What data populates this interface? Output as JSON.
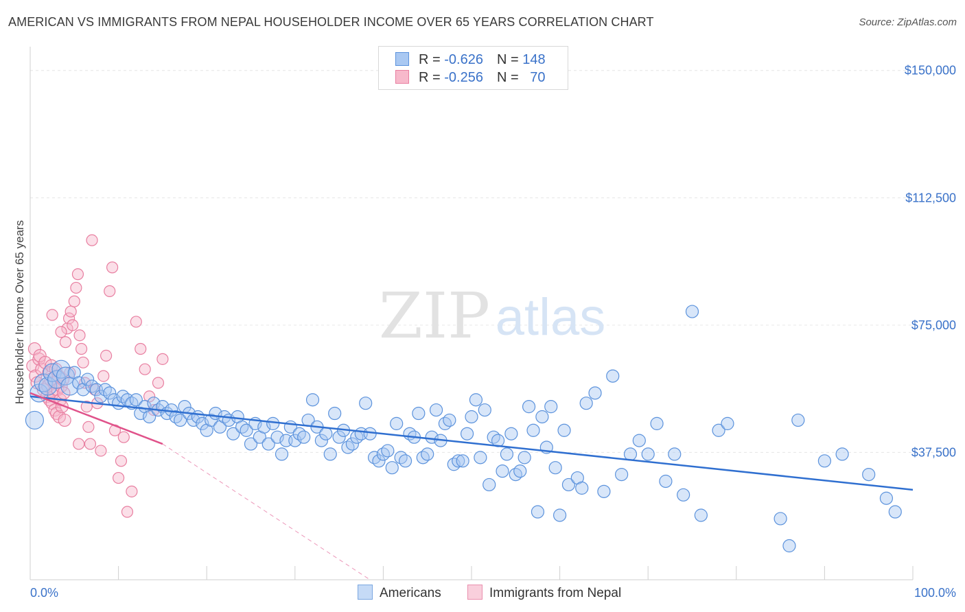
{
  "title": "AMERICAN VS IMMIGRANTS FROM NEPAL HOUSEHOLDER INCOME OVER 65 YEARS CORRELATION CHART",
  "source": "Source: ZipAtlas.com",
  "watermark": {
    "zip": "ZIP",
    "atlas": "atlas"
  },
  "legend": {
    "rows": [
      {
        "r_label": "R = ",
        "r_value": "-0.626",
        "n_label": "N = ",
        "n_value": "148"
      },
      {
        "r_label": "R = ",
        "r_value": "-0.256",
        "n_label": "N = ",
        "n_value": "70"
      }
    ]
  },
  "colors": {
    "americans_fill": "#a9c8f2",
    "americans_stroke": "#5b92dc",
    "americans_line": "#2f6fd0",
    "nepal_fill": "#f7b9cb",
    "nepal_stroke": "#e87ea0",
    "nepal_line": "#e0528a",
    "tick_label": "#3a72c9",
    "grid": "#e6e6e6"
  },
  "chart_data": {
    "type": "scatter",
    "xlabel": "",
    "ylabel": "Householder Income Over 65 years",
    "xlim": [
      0,
      100
    ],
    "ylim": [
      0,
      155000
    ],
    "x_ticks": {
      "left": "0.0%",
      "right": "100.0%"
    },
    "y_ticks": [
      {
        "value": 37500,
        "label": "$37,500"
      },
      {
        "value": 75000,
        "label": "$75,000"
      },
      {
        "value": 112500,
        "label": "$112,500"
      },
      {
        "value": 150000,
        "label": "$150,000"
      }
    ],
    "grid": true,
    "legend_position": "bottom",
    "series": [
      {
        "name": "Americans",
        "trend": {
          "x": [
            0,
            100
          ],
          "y": [
            54000,
            26500
          ]
        },
        "points": [
          [
            0.5,
            47000
          ],
          [
            1,
            55000
          ],
          [
            1.5,
            58000
          ],
          [
            2,
            57000
          ],
          [
            2.5,
            61000
          ],
          [
            3,
            59000
          ],
          [
            3.5,
            62000
          ],
          [
            4,
            60000
          ],
          [
            4.5,
            57000
          ],
          [
            5,
            61000
          ],
          [
            5.5,
            58000
          ],
          [
            6,
            56000
          ],
          [
            6.5,
            59000
          ],
          [
            7,
            57000
          ],
          [
            7.5,
            56000
          ],
          [
            8,
            54000
          ],
          [
            8.5,
            56000
          ],
          [
            9,
            55000
          ],
          [
            9.5,
            53000
          ],
          [
            10,
            52000
          ],
          [
            10.5,
            54000
          ],
          [
            11,
            53000
          ],
          [
            11.5,
            52000
          ],
          [
            12,
            53000
          ],
          [
            12.5,
            49000
          ],
          [
            13,
            51000
          ],
          [
            13.5,
            48000
          ],
          [
            14,
            52000
          ],
          [
            14.5,
            50000
          ],
          [
            15,
            51000
          ],
          [
            15.5,
            49000
          ],
          [
            16,
            50000
          ],
          [
            16.5,
            48000
          ],
          [
            17,
            47000
          ],
          [
            17.5,
            51000
          ],
          [
            18,
            49000
          ],
          [
            18.5,
            47000
          ],
          [
            19,
            48000
          ],
          [
            19.5,
            46000
          ],
          [
            20,
            44000
          ],
          [
            20.5,
            47000
          ],
          [
            21,
            49000
          ],
          [
            21.5,
            45000
          ],
          [
            22,
            48000
          ],
          [
            22.5,
            47000
          ],
          [
            23,
            43000
          ],
          [
            23.5,
            48000
          ],
          [
            24,
            45000
          ],
          [
            24.5,
            44000
          ],
          [
            25,
            40000
          ],
          [
            25.5,
            46000
          ],
          [
            26,
            42000
          ],
          [
            26.5,
            45000
          ],
          [
            27,
            40000
          ],
          [
            27.5,
            46000
          ],
          [
            28,
            42000
          ],
          [
            28.5,
            37000
          ],
          [
            29,
            41000
          ],
          [
            29.5,
            45000
          ],
          [
            30,
            41000
          ],
          [
            30.5,
            43000
          ],
          [
            31,
            42000
          ],
          [
            31.5,
            47000
          ],
          [
            32,
            53000
          ],
          [
            32.5,
            45000
          ],
          [
            33,
            41000
          ],
          [
            33.5,
            43000
          ],
          [
            34,
            37000
          ],
          [
            34.5,
            49000
          ],
          [
            35,
            42000
          ],
          [
            35.5,
            44000
          ],
          [
            36,
            39000
          ],
          [
            36.5,
            40000
          ],
          [
            37,
            42000
          ],
          [
            37.5,
            43000
          ],
          [
            38,
            52000
          ],
          [
            38.5,
            43000
          ],
          [
            39,
            36000
          ],
          [
            39.5,
            35000
          ],
          [
            40,
            37000
          ],
          [
            40.5,
            38000
          ],
          [
            41,
            33000
          ],
          [
            41.5,
            46000
          ],
          [
            42,
            36000
          ],
          [
            42.5,
            35000
          ],
          [
            43,
            43000
          ],
          [
            43.5,
            42000
          ],
          [
            44,
            49000
          ],
          [
            44.5,
            36000
          ],
          [
            45,
            37000
          ],
          [
            45.5,
            42000
          ],
          [
            46,
            50000
          ],
          [
            46.5,
            41000
          ],
          [
            47,
            46000
          ],
          [
            47.5,
            47000
          ],
          [
            48,
            34000
          ],
          [
            48.5,
            35000
          ],
          [
            49,
            35000
          ],
          [
            49.5,
            43000
          ],
          [
            50,
            48000
          ],
          [
            50.5,
            53000
          ],
          [
            51,
            36000
          ],
          [
            51.5,
            50000
          ],
          [
            52,
            28000
          ],
          [
            52.5,
            42000
          ],
          [
            53,
            41000
          ],
          [
            53.5,
            32000
          ],
          [
            54,
            37000
          ],
          [
            54.5,
            43000
          ],
          [
            55,
            31000
          ],
          [
            55.5,
            32000
          ],
          [
            56,
            36000
          ],
          [
            56.5,
            51000
          ],
          [
            57,
            44000
          ],
          [
            57.5,
            20000
          ],
          [
            58,
            48000
          ],
          [
            58.5,
            39000
          ],
          [
            59,
            51000
          ],
          [
            59.5,
            33000
          ],
          [
            60,
            19000
          ],
          [
            60.5,
            44000
          ],
          [
            61,
            28000
          ],
          [
            62,
            30000
          ],
          [
            62.5,
            27000
          ],
          [
            63,
            52000
          ],
          [
            64,
            55000
          ],
          [
            65,
            26000
          ],
          [
            66,
            60000
          ],
          [
            67,
            31000
          ],
          [
            68,
            37000
          ],
          [
            69,
            41000
          ],
          [
            70,
            37000
          ],
          [
            71,
            46000
          ],
          [
            72,
            29000
          ],
          [
            73,
            37000
          ],
          [
            74,
            25000
          ],
          [
            75,
            79000
          ],
          [
            76,
            19000
          ],
          [
            78,
            44000
          ],
          [
            79,
            46000
          ],
          [
            85,
            18000
          ],
          [
            86,
            10000
          ],
          [
            87,
            47000
          ],
          [
            90,
            35000
          ],
          [
            92,
            37000
          ],
          [
            95,
            31000
          ],
          [
            97,
            24000
          ],
          [
            98,
            20000
          ]
        ]
      },
      {
        "name": "Immigrants from Nepal",
        "trend": {
          "x": [
            0,
            15
          ],
          "y": [
            55000,
            40000
          ]
        },
        "trend_dashed": {
          "x": [
            15,
            38.5
          ],
          "y": [
            40000,
            0
          ]
        },
        "points": [
          [
            0.3,
            63000
          ],
          [
            0.5,
            68000
          ],
          [
            0.6,
            60000
          ],
          [
            0.8,
            58000
          ],
          [
            1,
            65000
          ],
          [
            1.1,
            66000
          ],
          [
            1.3,
            62000
          ],
          [
            1.5,
            56000
          ],
          [
            1.7,
            64000
          ],
          [
            1.9,
            54000
          ],
          [
            2,
            57000
          ],
          [
            2.1,
            61000
          ],
          [
            2.2,
            53000
          ],
          [
            2.3,
            59000
          ],
          [
            2.4,
            63000
          ],
          [
            2.5,
            52000
          ],
          [
            2.6,
            55000
          ],
          [
            2.7,
            58000
          ],
          [
            2.8,
            50000
          ],
          [
            2.9,
            62000
          ],
          [
            3,
            49000
          ],
          [
            3.1,
            56000
          ],
          [
            3.2,
            60000
          ],
          [
            3.3,
            48000
          ],
          [
            3.4,
            53000
          ],
          [
            3.5,
            57000
          ],
          [
            3.6,
            51000
          ],
          [
            3.7,
            59000
          ],
          [
            3.8,
            55000
          ],
          [
            3.9,
            47000
          ],
          [
            4,
            70000
          ],
          [
            4.2,
            74000
          ],
          [
            4.4,
            77000
          ],
          [
            4.6,
            79000
          ],
          [
            4.8,
            75000
          ],
          [
            5,
            82000
          ],
          [
            5.2,
            86000
          ],
          [
            5.4,
            90000
          ],
          [
            5.6,
            72000
          ],
          [
            5.8,
            68000
          ],
          [
            6,
            64000
          ],
          [
            6.2,
            58000
          ],
          [
            6.4,
            51000
          ],
          [
            6.6,
            45000
          ],
          [
            6.8,
            40000
          ],
          [
            7,
            100000
          ],
          [
            7.3,
            56000
          ],
          [
            7.6,
            52000
          ],
          [
            8,
            38000
          ],
          [
            8.3,
            60000
          ],
          [
            8.6,
            66000
          ],
          [
            9,
            85000
          ],
          [
            9.3,
            92000
          ],
          [
            9.6,
            44000
          ],
          [
            10,
            30000
          ],
          [
            10.3,
            35000
          ],
          [
            10.6,
            42000
          ],
          [
            11,
            20000
          ],
          [
            11.5,
            26000
          ],
          [
            12,
            76000
          ],
          [
            12.5,
            68000
          ],
          [
            13,
            62000
          ],
          [
            13.5,
            54000
          ],
          [
            14,
            50000
          ],
          [
            14.5,
            58000
          ],
          [
            15,
            65000
          ],
          [
            2.5,
            78000
          ],
          [
            3.5,
            73000
          ],
          [
            4.5,
            61000
          ],
          [
            5.5,
            40000
          ]
        ]
      }
    ]
  },
  "bottom_legend": {
    "americans": "Americans",
    "nepal": "Immigrants from Nepal"
  }
}
